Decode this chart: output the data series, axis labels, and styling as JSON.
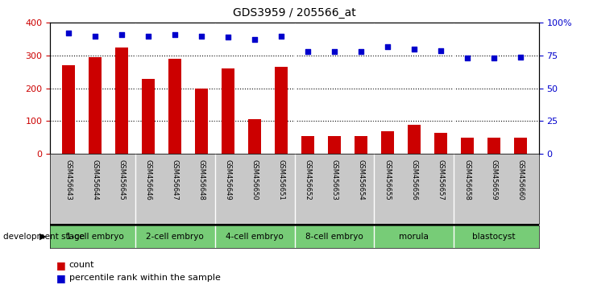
{
  "title": "GDS3959 / 205566_at",
  "samples": [
    "GSM456643",
    "GSM456644",
    "GSM456645",
    "GSM456646",
    "GSM456647",
    "GSM456648",
    "GSM456649",
    "GSM456650",
    "GSM456651",
    "GSM456652",
    "GSM456653",
    "GSM456654",
    "GSM456655",
    "GSM456656",
    "GSM456657",
    "GSM456658",
    "GSM456659",
    "GSM456660"
  ],
  "counts": [
    270,
    295,
    325,
    230,
    290,
    200,
    260,
    105,
    265,
    55,
    55,
    55,
    70,
    90,
    65,
    50,
    50,
    50
  ],
  "percentiles": [
    92,
    90,
    91,
    90,
    91,
    90,
    89,
    87,
    90,
    78,
    78,
    78,
    82,
    80,
    79,
    73,
    73,
    74
  ],
  "bar_color": "#cc0000",
  "dot_color": "#0000cc",
  "stage_groups": [
    {
      "label": "1-cell embryo",
      "start": 0,
      "end": 3
    },
    {
      "label": "2-cell embryo",
      "start": 3,
      "end": 6
    },
    {
      "label": "4-cell embryo",
      "start": 6,
      "end": 9
    },
    {
      "label": "8-cell embryo",
      "start": 9,
      "end": 12
    },
    {
      "label": "morula",
      "start": 12,
      "end": 15
    },
    {
      "label": "blastocyst",
      "start": 15,
      "end": 18
    }
  ],
  "ylim_left": [
    0,
    400
  ],
  "ylim_right": [
    0,
    100
  ],
  "yticks_left": [
    0,
    100,
    200,
    300,
    400
  ],
  "yticks_right": [
    0,
    25,
    50,
    75,
    100
  ],
  "ylabel_left_color": "#cc0000",
  "ylabel_right_color": "#0000cc",
  "header_bg_color": "#c8c8c8",
  "stage_bg_color": "#77cc77",
  "legend_count_label": "count",
  "legend_pct_label": "percentile rank within the sample",
  "development_stage_label": "development stage"
}
